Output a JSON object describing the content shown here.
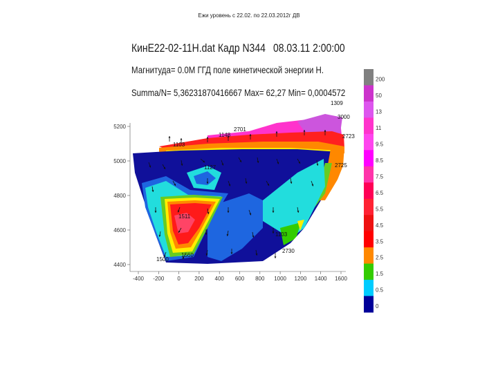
{
  "slide_title": "Ежи уровень с 22.02. по 22.03.2012г ДВ",
  "chart_data": {
    "type": "heatmap",
    "title_line1": "КинЕ22-02-11Н.dat Кадр N344",
    "title_date": "08.03.11 2:00:00",
    "subtitle_line2": "Магнитуда= 0.0М     ГГД поле кинетической энергии Н.",
    "subtitle_line3": "Summa/N= 5,36231870416667 Max= 62,27 Min= 0,0004572",
    "xlabel": "",
    "ylabel": "",
    "xlim": [
      -400,
      1600
    ],
    "ylim": [
      4400,
      5200
    ],
    "x_ticks": [
      "-400",
      "-200",
      "0",
      "200",
      "400",
      "600",
      "800",
      "1000",
      "1200",
      "1400",
      "1600"
    ],
    "y_ticks": [
      "5200",
      "5000",
      "4800",
      "4600",
      "4400"
    ],
    "colorbar": {
      "labels": [
        "200",
        "50",
        "13",
        "11",
        "9.5",
        "8.5",
        "7.5",
        "6.5",
        "5.5",
        "4.5",
        "3.5",
        "2.5",
        "1.5",
        "0.5",
        "0"
      ],
      "colors": [
        "#808080",
        "#cc33cc",
        "#dd55ee",
        "#ff33cc",
        "#ff44ee",
        "#ff00ff",
        "#ff33aa",
        "#ff0055",
        "#ff2233",
        "#ee1111",
        "#ff0000",
        "#ff8800",
        "#33cc00",
        "#00ccff",
        "#000099"
      ]
    },
    "station_labels": [
      "1309",
      "2701",
      "2723",
      "1148",
      "1127",
      "3000",
      "1103",
      "2725",
      "1511",
      "1500",
      "1560",
      "2730",
      "1103"
    ]
  },
  "colors": {
    "background": "#ffffff",
    "dark_blue": "#10109a",
    "cyan": "#22dddd",
    "red": "#ff2020",
    "magenta": "#ff33cc"
  }
}
